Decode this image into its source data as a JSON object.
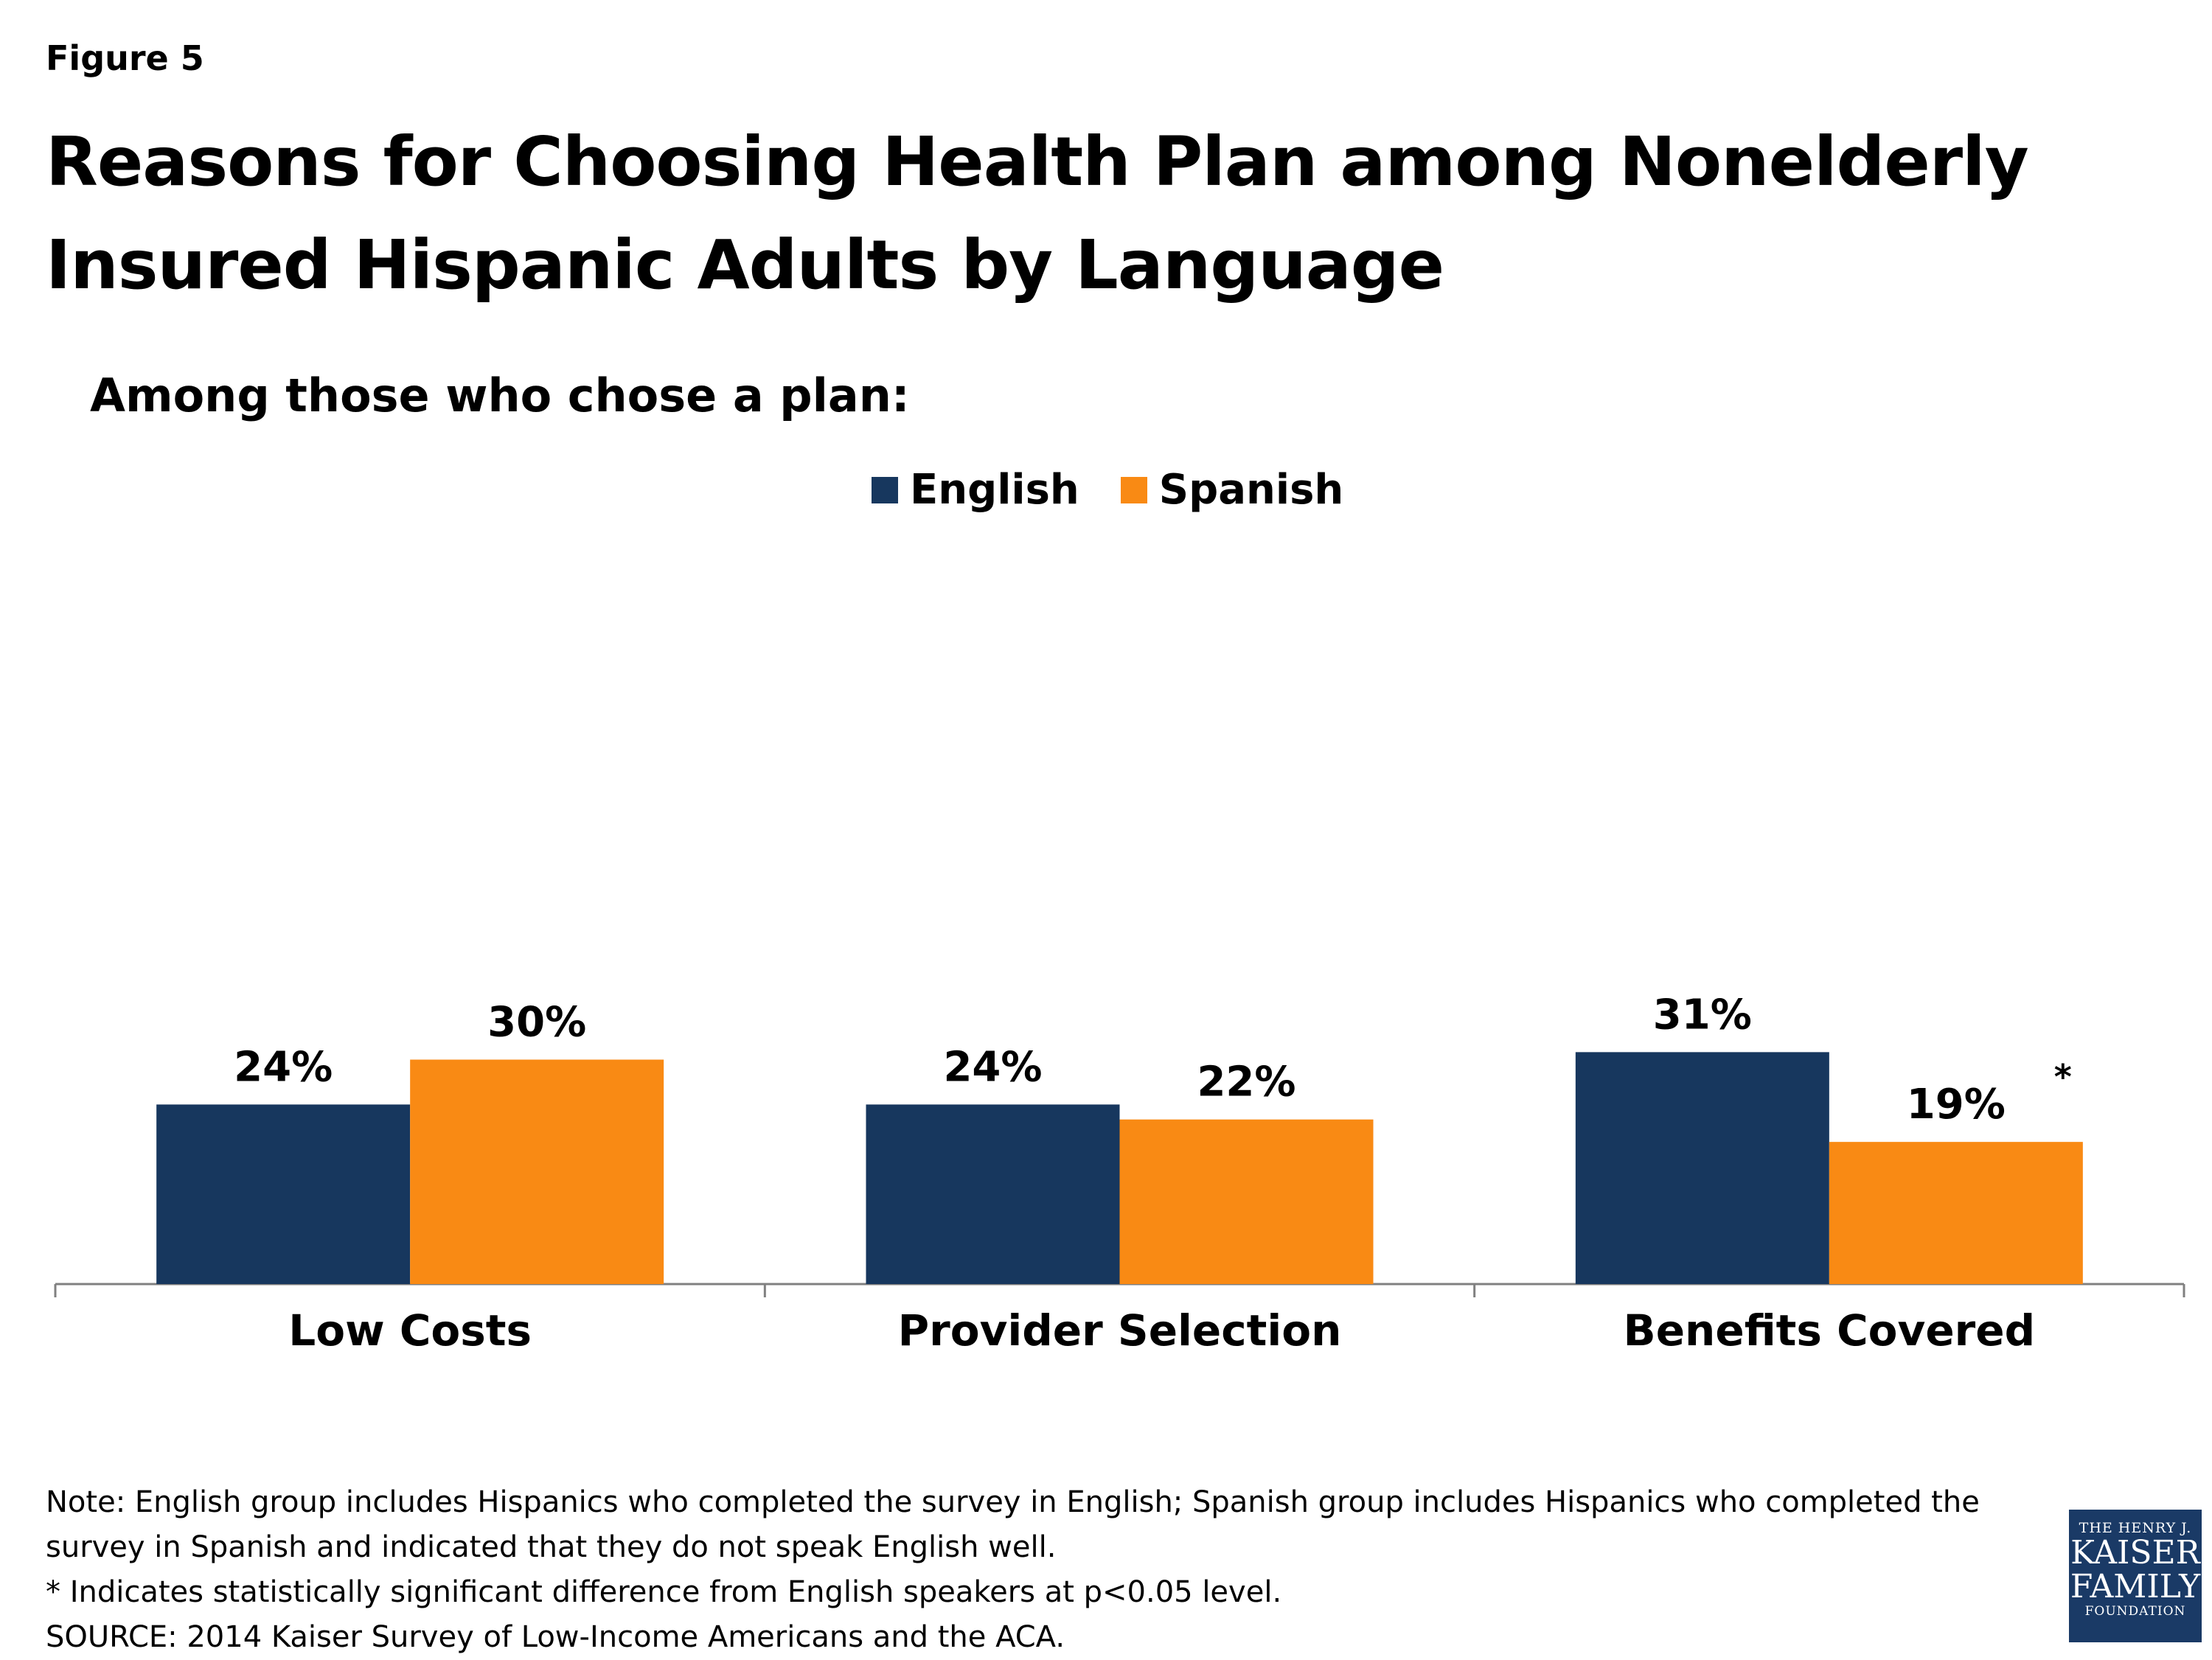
{
  "figure_label": "Figure 5",
  "title": "Reasons for Choosing Health Plan among Nonelderly Insured Hispanic Adults by Language",
  "subtitle": "Among those who chose a plan:",
  "colors": {
    "English": "#17375e",
    "Spanish": "#f98a14",
    "axis": "#808080"
  },
  "chart_data": {
    "type": "bar",
    "categories": [
      "Low Costs",
      "Provider Selection",
      "Benefits Covered"
    ],
    "series": [
      {
        "name": "English",
        "values": [
          24,
          24,
          31
        ],
        "labels": [
          "24%",
          "24%",
          "31%"
        ]
      },
      {
        "name": "Spanish",
        "values": [
          30,
          22,
          19
        ],
        "labels": [
          "30%",
          "22%",
          "19%"
        ]
      }
    ],
    "annotations": [
      {
        "category": "Benefits Covered",
        "series": "Spanish",
        "text": "*"
      }
    ],
    "ylim": [
      0,
      100
    ],
    "grid": false,
    "legend": "top-center"
  },
  "notes": [
    "Note: English group includes Hispanics who completed the survey in English; Spanish group includes Hispanics who completed the",
    "survey in Spanish and indicated that they do not speak English well.",
    "* Indicates statistically significant difference from English speakers at p<0.05 level.",
    "SOURCE: 2014 Kaiser Survey of Low-Income Americans and the ACA."
  ],
  "logo": {
    "line1": "THE HENRY J.",
    "line2": "KAISER",
    "line3": "FAMILY",
    "line4": "FOUNDATION"
  }
}
